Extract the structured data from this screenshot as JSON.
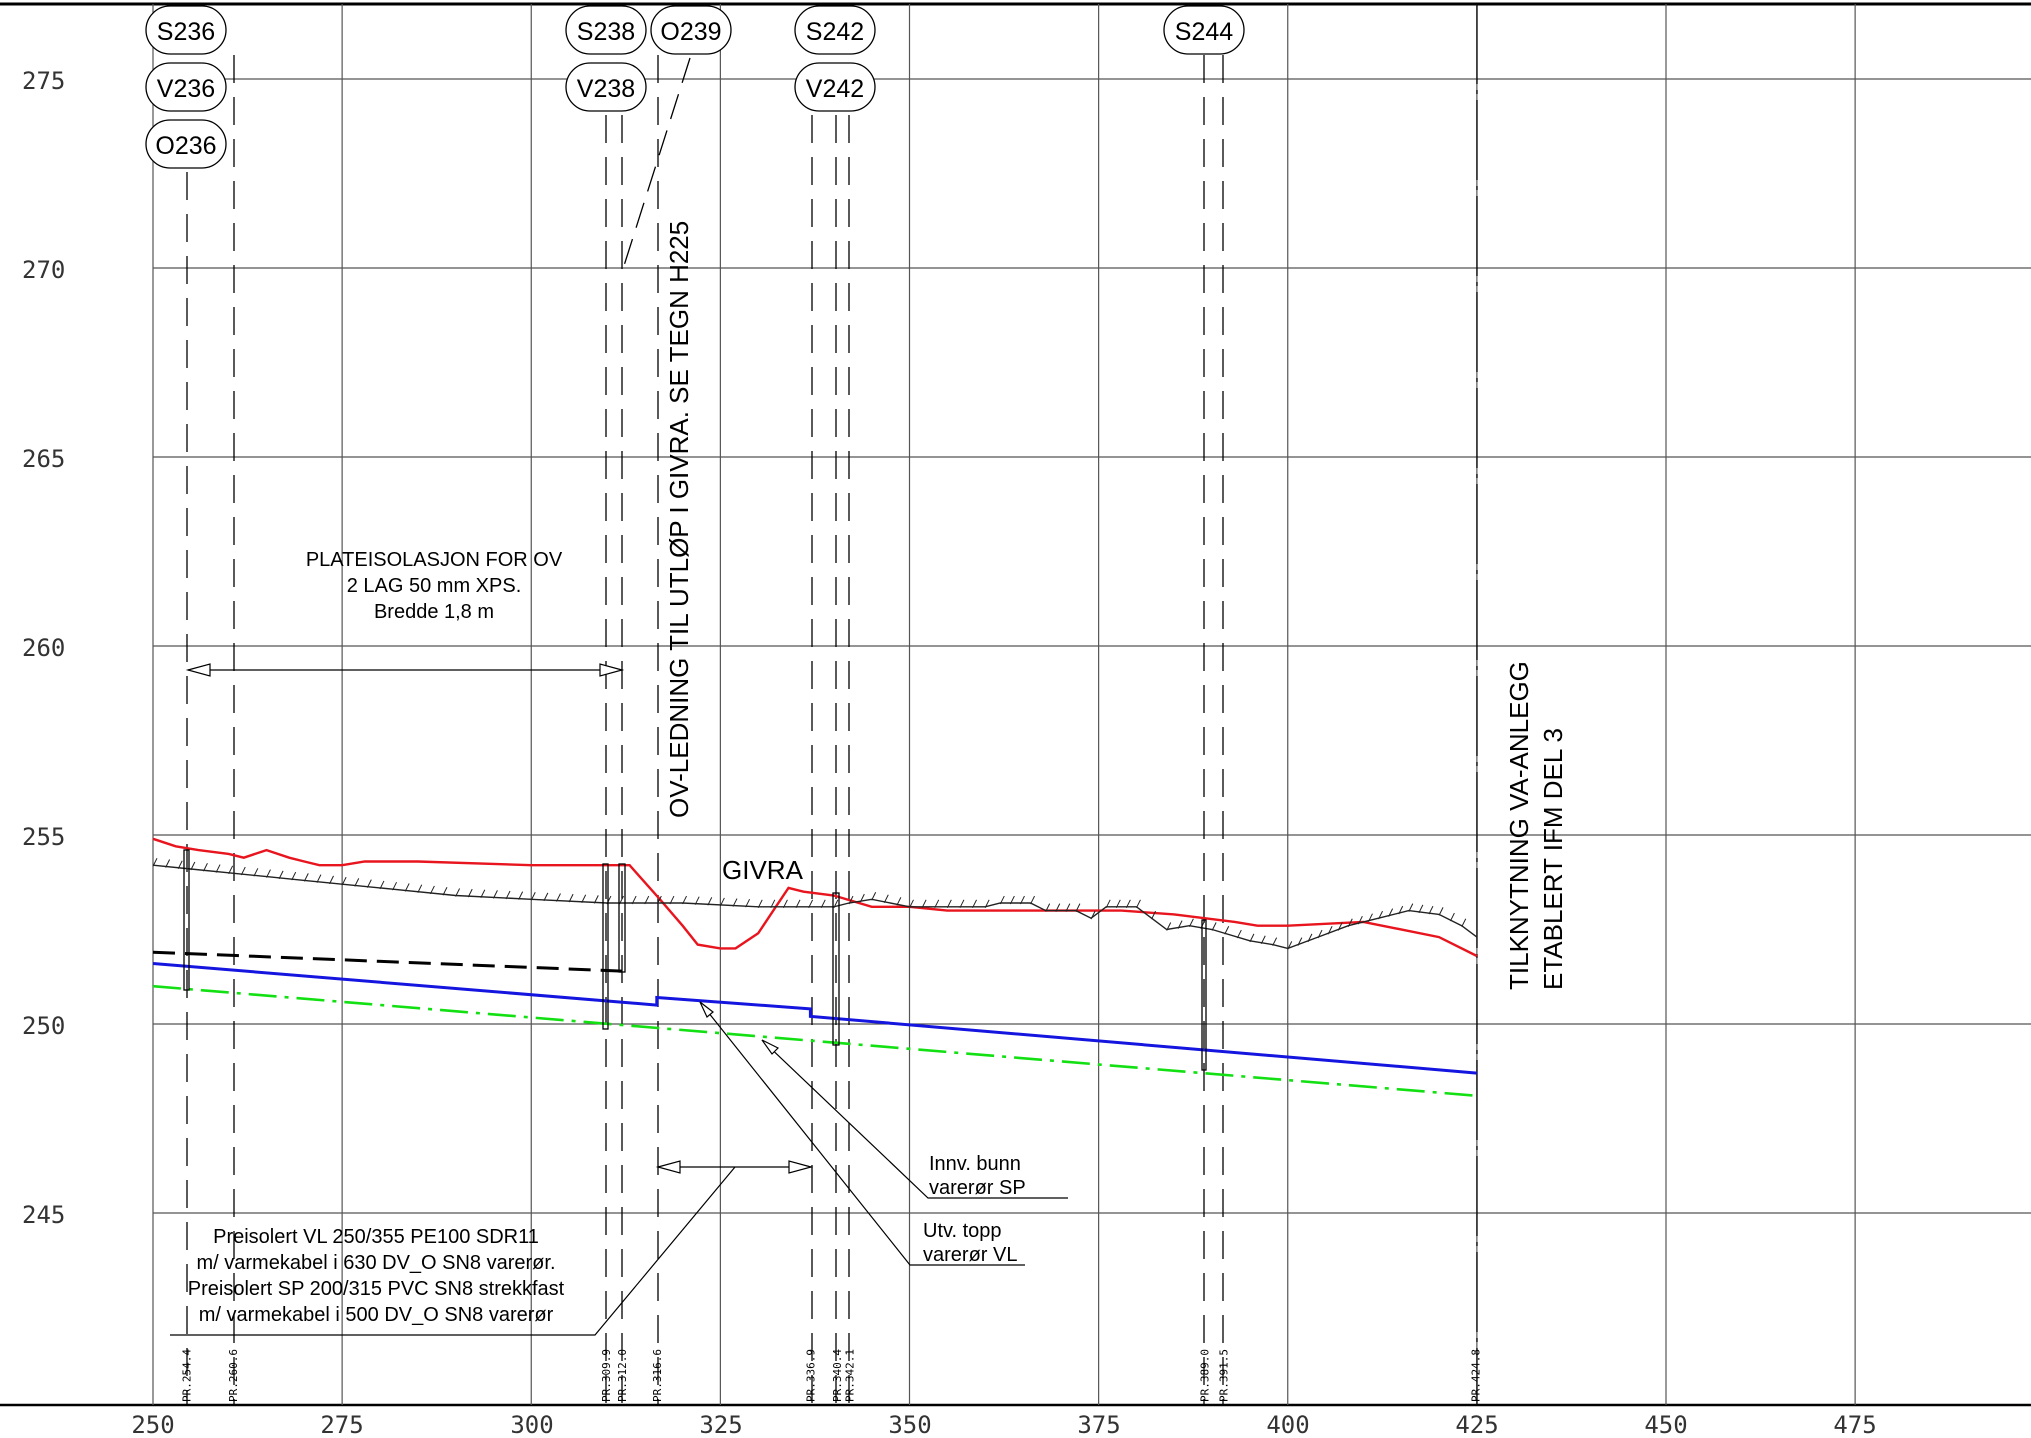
{
  "title": "",
  "colors": {
    "grid": "#555555",
    "terrain_red": "#e8141e",
    "terrain_black": "#222222",
    "pipe_blue": "#1515e0",
    "pipe_green": "#12e012",
    "dashed_black": "#000000"
  },
  "axes": {
    "x_ticks": [
      "250",
      "275",
      "300",
      "325",
      "350",
      "375",
      "400",
      "425",
      "450",
      "475"
    ],
    "y_ticks": [
      "275",
      "270",
      "265",
      "260",
      "255",
      "250",
      "245"
    ],
    "x_range": [
      250,
      500
    ],
    "y_range": [
      241.5,
      277
    ]
  },
  "nodes": [
    {
      "id": "S236",
      "label": "S236"
    },
    {
      "id": "V236",
      "label": "V236"
    },
    {
      "id": "O236",
      "label": "O236"
    },
    {
      "id": "S238",
      "label": "S238"
    },
    {
      "id": "V238",
      "label": "V238"
    },
    {
      "id": "O239",
      "label": "O239"
    },
    {
      "id": "S242",
      "label": "S242"
    },
    {
      "id": "V242",
      "label": "V242"
    },
    {
      "id": "S244",
      "label": "S244"
    }
  ],
  "annotations": {
    "insulation_1": "PLATEISOLASJON FOR OV",
    "insulation_2": "2 LAG 50 mm XPS.",
    "insulation_3": "Bredde 1,8 m",
    "outlet_vertical": "OV-LEDNING TIL UTLØP I GIVRA. SE TEGN H225",
    "river": "GIVRA",
    "tie_in_1": "TILKNYTNING VA-ANLEGG",
    "tie_in_2": "ETABLERT IFM DEL 3",
    "inner_bottom_1": "Innv. bunn",
    "inner_bottom_2": "varerør SP",
    "outer_top_1": "Utv. topp",
    "outer_top_2": "varerør VL",
    "pipe_spec_1": "Preisolert VL 250/355 PE100 SDR11",
    "pipe_spec_2": "m/ varmekabel i 630 DV_O SN8 varerør.",
    "pipe_spec_3": "Preisolert SP 200/315 PVC SN8 strekkfast",
    "pipe_spec_4": "m/ varmekabel i 500 DV_O SN8 varerør"
  },
  "profile_markers": [
    {
      "label": "PR.254.4",
      "x": 254.4
    },
    {
      "label": "PR.260.6",
      "x": 260.6
    },
    {
      "label": "PR.309.9",
      "x": 309.9
    },
    {
      "label": "PR.312.0",
      "x": 312.0
    },
    {
      "label": "PR.316.6",
      "x": 316.6
    },
    {
      "label": "PR.336.9",
      "x": 336.9
    },
    {
      "label": "PR.340.4",
      "x": 340.4
    },
    {
      "label": "PR.342.1",
      "x": 342.1
    },
    {
      "label": "PR.389.0",
      "x": 389.0
    },
    {
      "label": "PR.391.5",
      "x": 391.5
    },
    {
      "label": "PR.424.8",
      "x": 424.8
    }
  ],
  "chart_data": {
    "type": "line",
    "xlabel": "",
    "ylabel": "",
    "xlim": [
      250,
      500
    ],
    "ylim": [
      241.5,
      277
    ],
    "grid": true,
    "series": [
      {
        "key": "terrain_red",
        "points": [
          [
            250,
            254.9
          ],
          [
            253,
            254.7
          ],
          [
            256,
            254.6
          ],
          [
            260,
            254.5
          ],
          [
            262,
            254.4
          ],
          [
            265,
            254.6
          ],
          [
            268,
            254.4
          ],
          [
            270,
            254.3
          ],
          [
            272,
            254.2
          ],
          [
            275,
            254.2
          ],
          [
            278,
            254.3
          ],
          [
            285,
            254.3
          ],
          [
            300,
            254.2
          ],
          [
            313,
            254.2
          ],
          [
            317,
            253.3
          ],
          [
            320,
            252.6
          ],
          [
            322,
            252.1
          ],
          [
            325,
            252.0
          ],
          [
            327,
            252.0
          ],
          [
            330,
            252.4
          ],
          [
            332,
            253.0
          ],
          [
            334,
            253.6
          ],
          [
            336,
            253.5
          ],
          [
            340,
            253.4
          ],
          [
            345,
            253.1
          ],
          [
            350,
            253.1
          ],
          [
            355,
            253.0
          ],
          [
            360,
            253.0
          ],
          [
            370,
            253.0
          ],
          [
            378,
            253.0
          ],
          [
            385,
            252.9
          ],
          [
            389,
            252.8
          ],
          [
            393,
            252.7
          ],
          [
            396,
            252.6
          ],
          [
            400,
            252.6
          ],
          [
            410,
            252.7
          ],
          [
            420,
            252.3
          ],
          [
            425,
            251.8
          ]
        ]
      },
      {
        "key": "terrain_black",
        "points": [
          [
            250,
            254.2
          ],
          [
            255,
            254.1
          ],
          [
            260,
            254.0
          ],
          [
            265,
            253.9
          ],
          [
            270,
            253.8
          ],
          [
            280,
            253.6
          ],
          [
            290,
            253.4
          ],
          [
            300,
            253.3
          ],
          [
            310,
            253.2
          ],
          [
            320,
            253.2
          ],
          [
            330,
            253.1
          ],
          [
            340,
            253.1
          ],
          [
            342,
            253.2
          ],
          [
            345,
            253.3
          ],
          [
            350,
            253.1
          ],
          [
            360,
            253.1
          ],
          [
            362,
            253.2
          ],
          [
            366,
            253.2
          ],
          [
            368,
            253.0
          ],
          [
            372,
            253.0
          ],
          [
            374,
            252.8
          ],
          [
            376,
            253.1
          ],
          [
            380,
            253.1
          ],
          [
            382,
            252.8
          ],
          [
            384,
            252.5
          ],
          [
            387,
            252.6
          ],
          [
            390,
            252.5
          ],
          [
            395,
            252.2
          ],
          [
            398,
            252.1
          ],
          [
            400,
            252.0
          ],
          [
            404,
            252.3
          ],
          [
            408,
            252.6
          ],
          [
            412,
            252.8
          ],
          [
            416,
            253.0
          ],
          [
            420,
            252.9
          ],
          [
            423,
            252.6
          ],
          [
            425,
            252.3
          ]
        ]
      },
      {
        "key": "dashed_black",
        "points": [
          [
            250,
            251.9
          ],
          [
            312,
            251.4
          ]
        ]
      },
      {
        "key": "pipe_blue",
        "points": [
          [
            250,
            251.6
          ],
          [
            316.6,
            250.5
          ],
          [
            316.6,
            250.7
          ],
          [
            336.9,
            250.4
          ],
          [
            336.9,
            250.2
          ],
          [
            425,
            248.7
          ]
        ]
      },
      {
        "key": "pipe_green",
        "points": [
          [
            250,
            251.0
          ],
          [
            425,
            248.1
          ]
        ]
      }
    ]
  }
}
